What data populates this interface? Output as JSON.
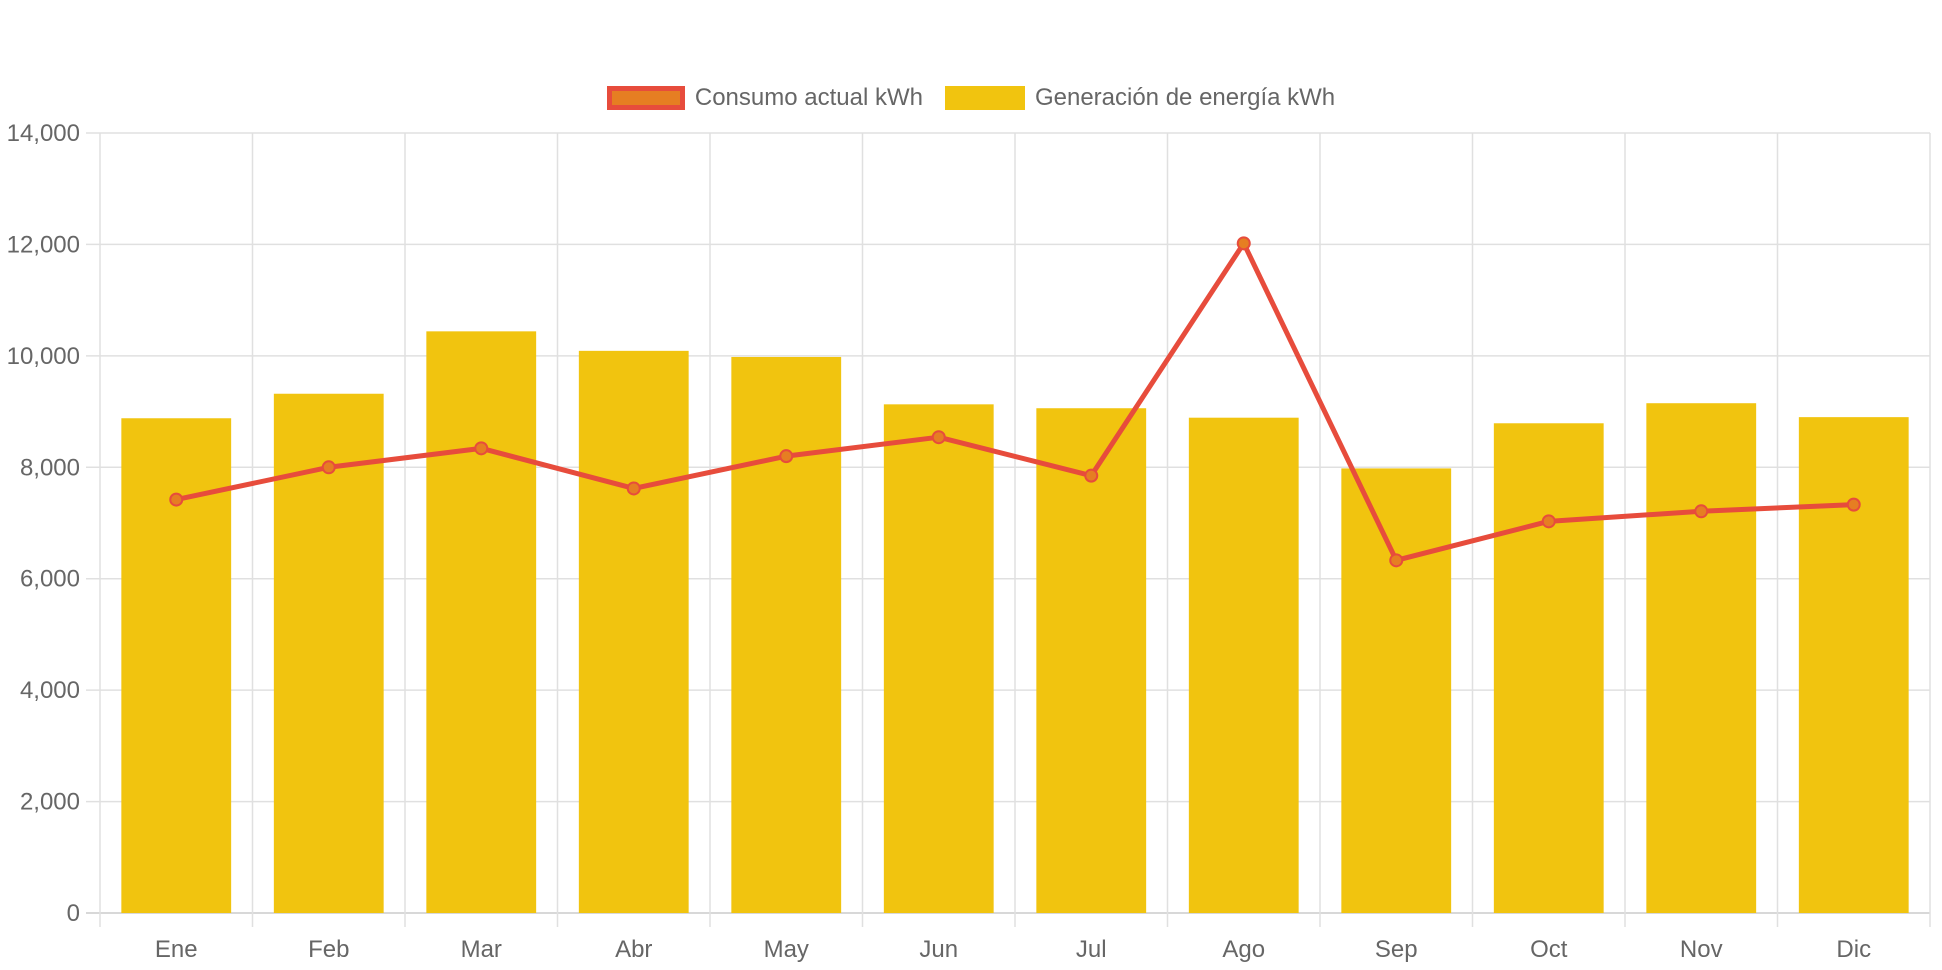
{
  "chart_data": {
    "type": "bar",
    "categories": [
      "Ene",
      "Feb",
      "Mar",
      "Abr",
      "May",
      "Jun",
      "Jul",
      "Ago",
      "Sep",
      "Oct",
      "Nov",
      "Dic"
    ],
    "series": [
      {
        "name": "Consumo actual kWh",
        "type": "line",
        "values": [
          7420,
          8000,
          8340,
          7620,
          8200,
          8540,
          7850,
          12020,
          6330,
          7030,
          7210,
          7330
        ],
        "color": "#e74c3c",
        "point_color": "#e67e22"
      },
      {
        "name": "Generación de energía kWh",
        "type": "bar",
        "values": [
          8880,
          9320,
          10440,
          10090,
          9980,
          9130,
          9060,
          8890,
          7980,
          8790,
          9150,
          8900
        ],
        "color": "#f1c40f"
      }
    ],
    "ylim": [
      0,
      14000
    ],
    "yticks": [
      "0",
      "2,000",
      "4,000",
      "6,000",
      "8,000",
      "10,000",
      "12,000",
      "14,000"
    ],
    "grid": true,
    "legend_position": "top-center",
    "colors": {
      "grid": "#e0e0e0",
      "tick_text": "#666666"
    }
  },
  "legend": {
    "line_label": "Consumo actual kWh",
    "bar_label": "Generación de energía kWh"
  }
}
